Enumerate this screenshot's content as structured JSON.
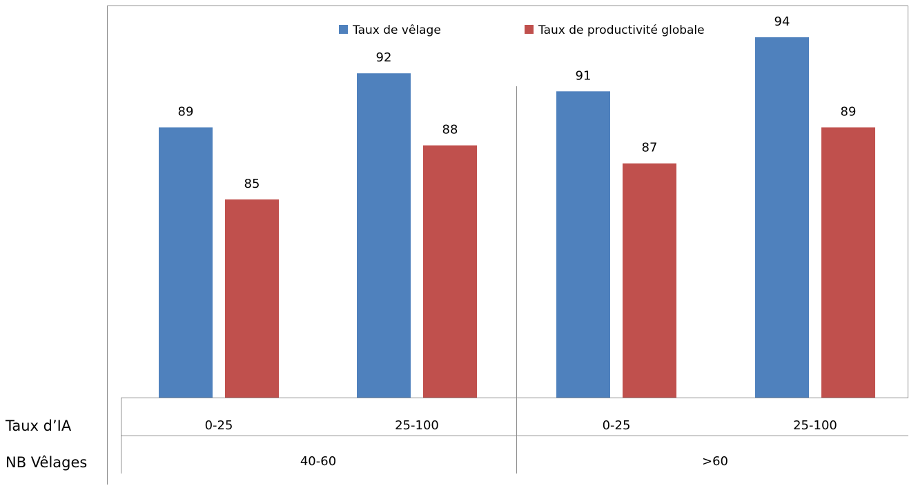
{
  "chart_data": {
    "type": "bar",
    "title": "",
    "xlabel": "",
    "ylabel": "",
    "ylim": [
      74,
      96
    ],
    "grid": false,
    "legend_position": "top",
    "categories": [
      "0-25",
      "25-100",
      "0-25",
      "25-100"
    ],
    "groups": [
      {
        "label": "40-60",
        "categories": [
          "0-25",
          "25-100"
        ]
      },
      {
        "label": ">60",
        "categories": [
          "0-25",
          "25-100"
        ]
      }
    ],
    "row_labels": {
      "categories": "Taux d’IA",
      "groups": "NB Vêlages"
    },
    "series": [
      {
        "name": "Taux de vêlage",
        "color": "#4f81bd",
        "values": [
          89,
          92,
          91,
          94
        ]
      },
      {
        "name": "Taux de productivité globale",
        "color": "#c0504d",
        "values": [
          85,
          88,
          87,
          89
        ]
      }
    ]
  }
}
